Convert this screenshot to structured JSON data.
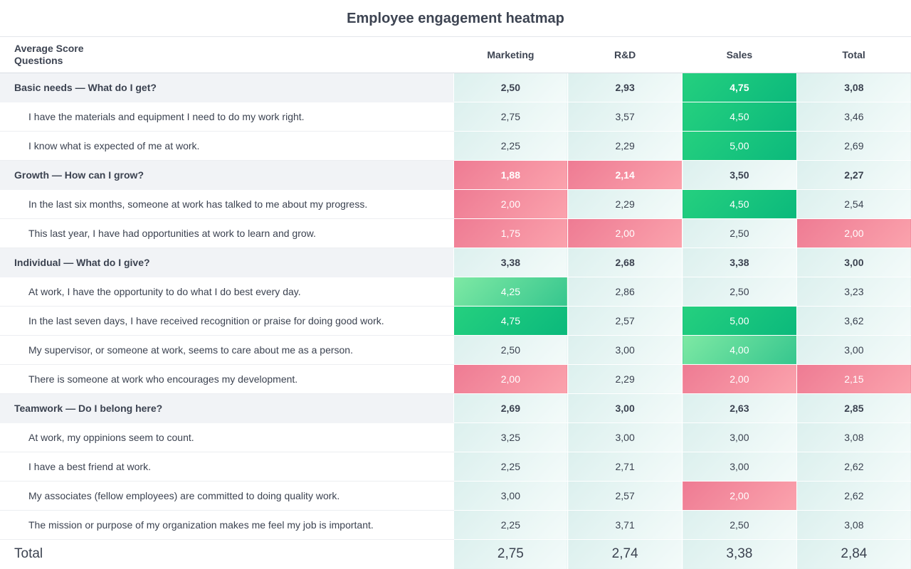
{
  "chart_data": {
    "type": "heatmap",
    "title": "Employee engagement heatmap",
    "header_label_line1": "Average Score",
    "header_label_line2": "Questions",
    "columns": [
      "Marketing",
      "R&D",
      "Sales",
      "Total"
    ],
    "rows": [
      {
        "label": "Basic needs — What do I get?",
        "group": true,
        "values": [
          "2,50",
          "2,93",
          "4,75",
          "3,08"
        ]
      },
      {
        "label": "I have the materials and equipment I need to do my work right.",
        "group": false,
        "values": [
          "2,75",
          "3,57",
          "4,50",
          "3,46"
        ]
      },
      {
        "label": "I know what is expected of me at work.",
        "group": false,
        "values": [
          "2,25",
          "2,29",
          "5,00",
          "2,69"
        ]
      },
      {
        "label": "Growth — How can I grow?",
        "group": true,
        "values": [
          "1,88",
          "2,14",
          "3,50",
          "2,27"
        ]
      },
      {
        "label": "In the last six months, someone at work has talked to me about my progress.",
        "group": false,
        "values": [
          "2,00",
          "2,29",
          "4,50",
          "2,54"
        ]
      },
      {
        "label": "This last year, I have had opportunities at work to learn and grow.",
        "group": false,
        "values": [
          "1,75",
          "2,00",
          "2,50",
          "2,00"
        ]
      },
      {
        "label": "Individual — What do I give?",
        "group": true,
        "values": [
          "3,38",
          "2,68",
          "3,38",
          "3,00"
        ]
      },
      {
        "label": "At work, I have the opportunity to do what I do best every day.",
        "group": false,
        "values": [
          "4,25",
          "2,86",
          "2,50",
          "3,23"
        ]
      },
      {
        "label": "In the last seven days, I have received recognition or praise for doing good work.",
        "group": false,
        "values": [
          "4,75",
          "2,57",
          "5,00",
          "3,62"
        ]
      },
      {
        "label": "My supervisor, or someone at work, seems to care about me as a person.",
        "group": false,
        "values": [
          "2,50",
          "3,00",
          "4,00",
          "3,00"
        ]
      },
      {
        "label": "There is someone at work who encourages my development.",
        "group": false,
        "values": [
          "2,00",
          "2,29",
          "2,00",
          "2,15"
        ]
      },
      {
        "label": "Teamwork — Do I belong here?",
        "group": true,
        "values": [
          "2,69",
          "3,00",
          "2,63",
          "2,85"
        ]
      },
      {
        "label": "At work, my oppinions seem to count.",
        "group": false,
        "values": [
          "3,25",
          "3,00",
          "3,00",
          "3,08"
        ]
      },
      {
        "label": "I have a best friend at work.",
        "group": false,
        "values": [
          "2,25",
          "2,71",
          "3,00",
          "2,62"
        ]
      },
      {
        "label": "My associates (fellow employees) are committed to doing quality work.",
        "group": false,
        "values": [
          "3,00",
          "2,57",
          "2,00",
          "2,62"
        ]
      },
      {
        "label": "The mission or purpose of my organization makes me feel my job is important.",
        "group": false,
        "values": [
          "2,25",
          "3,71",
          "2,50",
          "3,08"
        ]
      }
    ],
    "total": {
      "label": "Total",
      "values": [
        "2,75",
        "2,74",
        "3,38",
        "2,84"
      ]
    },
    "color_scale": {
      "high": "#15c47e",
      "medium_high": "#5fd99a",
      "neutral": "#e6f4f2",
      "low": "#f28da0"
    }
  }
}
